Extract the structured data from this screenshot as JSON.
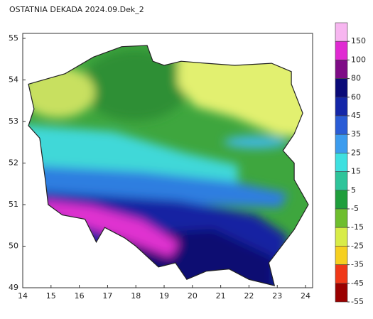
{
  "chart_data": {
    "type": "map",
    "title": "OSTATNIA DEKADA 2024.09.Dek_2",
    "xlim": [
      14,
      24.25
    ],
    "ylim": [
      49,
      55.12
    ],
    "xticks": [
      14,
      15,
      16,
      17,
      18,
      19,
      20,
      21,
      22,
      23,
      24
    ],
    "yticks": [
      49,
      50,
      51,
      52,
      53,
      54,
      55
    ],
    "colorbar": {
      "levels": [
        150,
        100,
        80,
        60,
        45,
        35,
        25,
        15,
        5,
        -5,
        -15,
        -25,
        -35,
        -45,
        -55
      ],
      "colors": [
        "#f7b6f0",
        "#e02ad2",
        "#7e0c86",
        "#0a0a78",
        "#1426a8",
        "#2a5cd6",
        "#3c9cee",
        "#3ee0e0",
        "#2ec49a",
        "#1f9e3c",
        "#6ebe2e",
        "#d8ec48",
        "#f6d020",
        "#f03818",
        "#9a0000"
      ]
    }
  }
}
